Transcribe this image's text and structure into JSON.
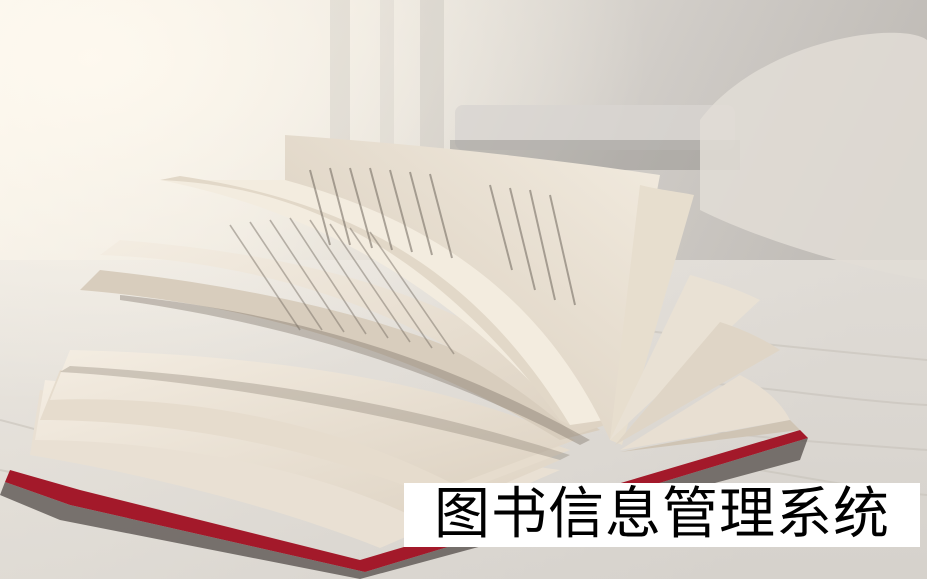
{
  "title": "图书信息管理系统",
  "colors": {
    "background_light": "#f3ede2",
    "background_right": "#cfcac4",
    "page": "#efe7da",
    "page_shadow": "#a59a8c",
    "cover_red": "#a3192a",
    "text_box": "#ffffff",
    "text": "#000000"
  }
}
